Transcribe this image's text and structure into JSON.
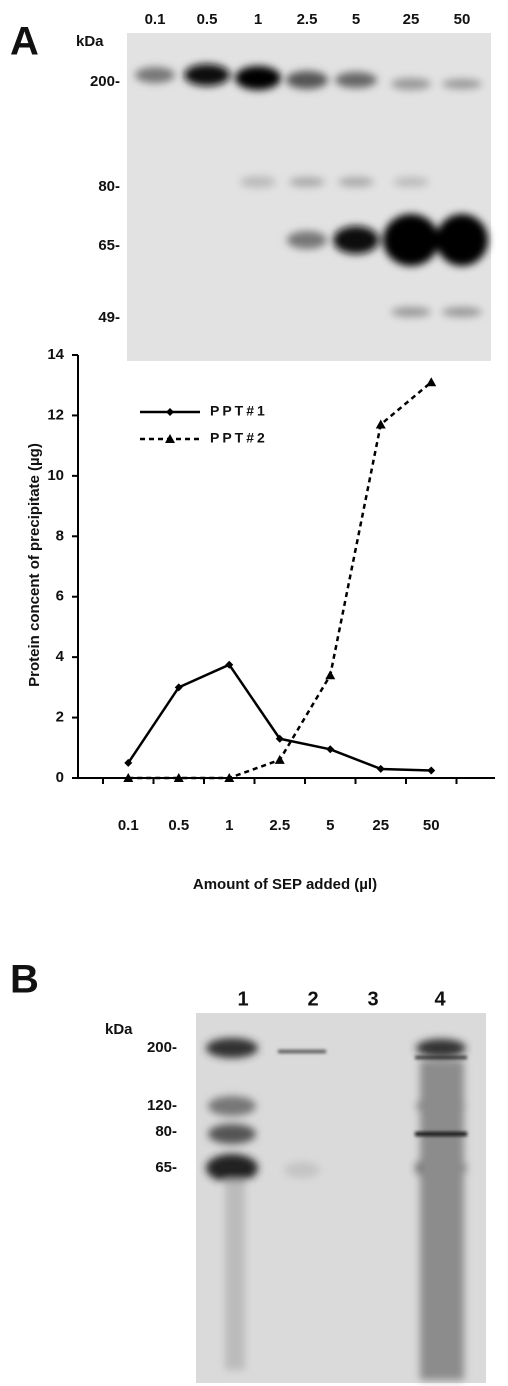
{
  "panel_a": {
    "label": "A",
    "kda_label": "kDa",
    "lanes": [
      "0.1",
      "0.5",
      "1",
      "2.5",
      "5",
      "25",
      "50"
    ],
    "markers": [
      "200-",
      "80-",
      "65-",
      "49-"
    ]
  },
  "chart_data": {
    "type": "line",
    "y_label": "Protein concent of precipitate (µg)",
    "x_label": "Amount of SEP added (µl)",
    "categories": [
      "0.1",
      "0.5",
      "1",
      "2.5",
      "5",
      "25",
      "50"
    ],
    "series": [
      {
        "name": "PPT#1",
        "color": "#000000",
        "line_style": "solid",
        "marker": "diamond",
        "values": [
          0.5,
          3.0,
          3.75,
          1.3,
          0.95,
          0.3,
          0.25
        ]
      },
      {
        "name": "PPT#2",
        "color": "#000000",
        "line_style": "dashed",
        "marker": "triangle",
        "values": [
          0,
          0,
          0,
          0.6,
          3.4,
          11.7,
          13.1
        ]
      }
    ],
    "ylim": [
      0,
      14
    ],
    "yticks": [
      0,
      2,
      4,
      6,
      8,
      10,
      12,
      14
    ],
    "grid": false,
    "legend": "upper left"
  },
  "panel_b": {
    "label": "B",
    "kda_label": "kDa",
    "lanes": [
      "1",
      "2",
      "3",
      "4"
    ],
    "markers": [
      "200-",
      "120-",
      "80-",
      "65-"
    ]
  }
}
